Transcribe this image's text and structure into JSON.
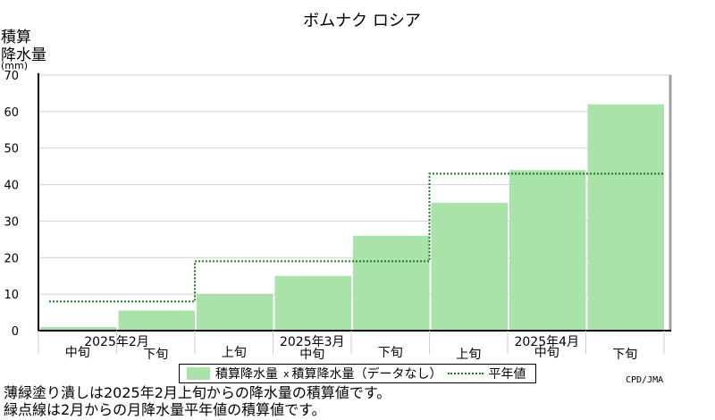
{
  "chart_data": {
    "type": "bar",
    "title": "ボムナク ロシア",
    "ylabel_lines": [
      "積算",
      "降水量",
      "(mm)"
    ],
    "ylim": [
      0,
      70
    ],
    "yticks": [
      0,
      10,
      20,
      30,
      40,
      50,
      60,
      70
    ],
    "categories": [
      "2025年2月 中旬",
      "2025年2月 下旬",
      "2025年3月 上旬",
      "2025年3月 中旬",
      "2025年3月 下旬",
      "2025年4月 上旬",
      "2025年4月 中旬",
      "2025年4月 下旬"
    ],
    "period_labels": [
      "中旬",
      "下旬",
      "上旬",
      "中旬",
      "下旬",
      "上旬",
      "中旬",
      "下旬"
    ],
    "month_labels": [
      {
        "label": "2025年2月",
        "from": 0,
        "to": 1
      },
      {
        "label": "2025年3月",
        "from": 2,
        "to": 4
      },
      {
        "label": "2025年4月",
        "from": 5,
        "to": 7
      }
    ],
    "series": [
      {
        "name": "積算降水量",
        "values": [
          1,
          5.5,
          10,
          15,
          26,
          35,
          44,
          62
        ],
        "color": "#aae3aa"
      },
      {
        "name": "平年値",
        "values": [
          8,
          8,
          19,
          19,
          19,
          43,
          43,
          43
        ],
        "color": "#1f7a1f",
        "style": "dotted"
      }
    ],
    "grid": true
  },
  "legend": {
    "bar_label": "積算降水量",
    "missing_label": "積算降水量（データなし）",
    "normal_label": "平年値",
    "marker": "x"
  },
  "notes": [
    "薄緑塗り潰しは2025年2月上旬からの降水量の積算値です。",
    "緑点線は2月からの月降水量平年値の積算値です。"
  ],
  "credit": "CPD/JMA"
}
